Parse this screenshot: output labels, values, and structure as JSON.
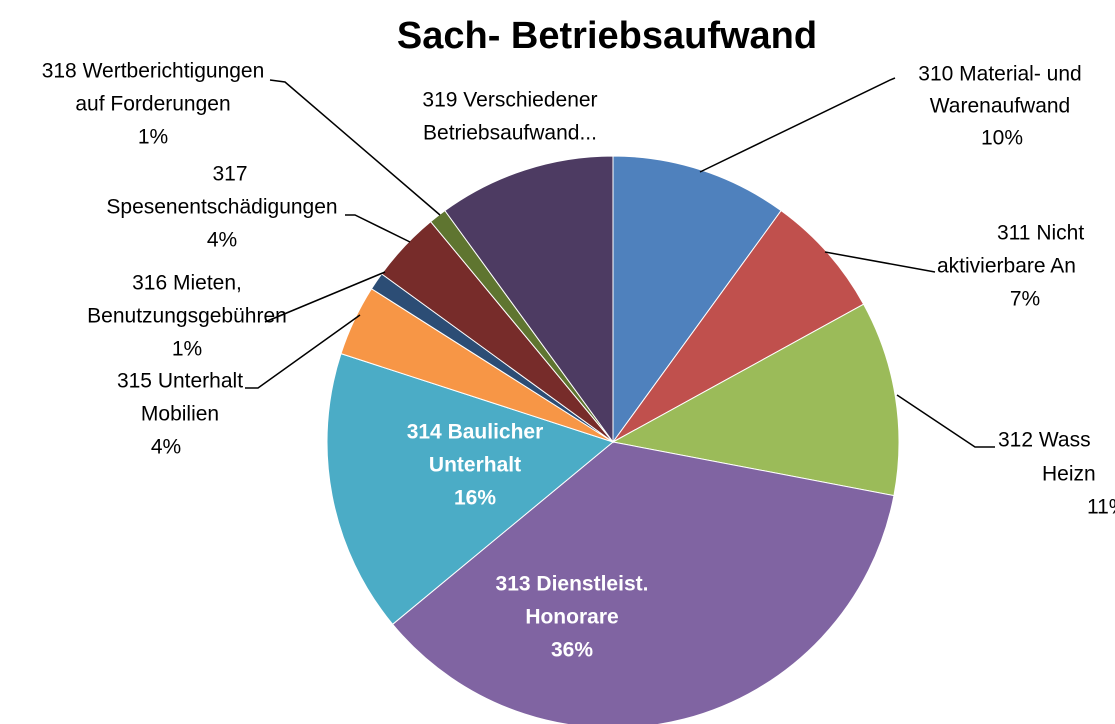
{
  "chart_data": {
    "type": "pie",
    "title": "Sach- Betriebsaufwand",
    "categories": [
      [
        "310 Material- und",
        "Warenaufwand"
      ],
      [
        "311 Nicht",
        "aktivierbare An"
      ],
      [
        "312 Wass",
        "Heizn"
      ],
      [
        "313 Dienstleist.",
        "Honorare"
      ],
      [
        "314 Baulicher",
        "Unterhalt"
      ],
      [
        "315 Unterhalt",
        "Mobilien"
      ],
      [
        "316 Mieten,",
        "Benutzungsgebühren"
      ],
      [
        "317",
        "Spesenentschädigungen"
      ],
      [
        "318 Wertberichtigungen",
        "auf Forderungen"
      ],
      [
        "319 Verschiedener",
        "Betriebsaufwand..."
      ]
    ],
    "values": [
      10,
      7,
      11,
      36,
      16,
      4,
      1,
      4,
      1,
      10
    ],
    "value_labels": [
      "10%",
      "7%",
      "11%",
      "36%",
      "16%",
      "4%",
      "1%",
      "4%",
      "1%",
      null
    ],
    "colors": [
      "#4f81bd",
      "#c0504d",
      "#9bbb59",
      "#8064a2",
      "#4bacc6",
      "#f79646",
      "#2c4d75",
      "#772c2a",
      "#5f7530",
      "#4d3b62"
    ]
  }
}
